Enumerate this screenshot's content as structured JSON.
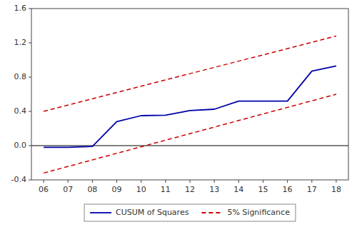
{
  "chart_data": {
    "type": "line",
    "series": [
      {
        "name": "CUSUM of Squares",
        "color": "#0000AA",
        "line_style": "solid",
        "x": [
          6,
          7,
          8,
          9,
          10,
          11,
          12,
          13,
          14,
          15,
          16,
          17,
          18
        ],
        "values": [
          -0.02,
          -0.02,
          -0.01,
          0.28,
          0.35,
          0.355,
          0.41,
          0.425,
          0.52,
          0.52,
          0.52,
          0.87,
          0.93
        ]
      },
      {
        "name": "5% Significance",
        "color": "#CC0000",
        "line_style": "dashed",
        "x": [
          6,
          18
        ],
        "values": [
          0.4,
          1.28
        ]
      },
      {
        "name": "5% Significance",
        "color": "#CC0000",
        "line_style": "dashed",
        "x": [
          6,
          18
        ],
        "values": [
          -0.32,
          0.6
        ]
      }
    ],
    "xlim": [
      5.5,
      18.5
    ],
    "xticks": [
      {
        "value": 6,
        "label": "06"
      },
      {
        "value": 7,
        "label": "07"
      },
      {
        "value": 8,
        "label": "08"
      },
      {
        "value": 9,
        "label": "09"
      },
      {
        "value": 10,
        "label": "10"
      },
      {
        "value": 11,
        "label": "11"
      },
      {
        "value": 12,
        "label": "12"
      },
      {
        "value": 13,
        "label": "13"
      },
      {
        "value": 14,
        "label": "14"
      },
      {
        "value": 15,
        "label": "15"
      },
      {
        "value": 16,
        "label": "16"
      },
      {
        "value": 17,
        "label": "17"
      },
      {
        "value": 18,
        "label": "18"
      }
    ],
    "ylim": [
      -0.4,
      1.6
    ],
    "yticks": [
      -0.4,
      {
        "value": 0,
        "label": "0.0"
      },
      0.4,
      0.8,
      1.2,
      1.6
    ],
    "grid": false,
    "legend": "bottom"
  }
}
